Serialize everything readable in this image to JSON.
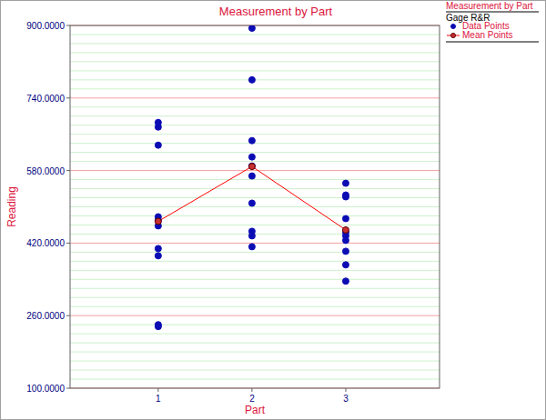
{
  "chart_data": {
    "type": "scatter",
    "title": "Measurement by Part",
    "x_label": "Part",
    "y_label": "Reading",
    "legend_title": "Measurement by Part",
    "legend_subtitle": "Gage R&R",
    "legend": "top-right",
    "grid": true,
    "xlim": [
      0.06,
      4.0
    ],
    "xticks": [
      1,
      2,
      3
    ],
    "ylim": [
      100,
      900
    ],
    "yticks": [
      {
        "value": 100,
        "label": "100.0000"
      },
      {
        "value": 260,
        "label": "260.0000"
      },
      {
        "value": 420,
        "label": "420.0000"
      },
      {
        "value": 580,
        "label": "580.0000"
      },
      {
        "value": 740,
        "label": "740.0000"
      },
      {
        "value": 900,
        "label": "900.0000"
      }
    ],
    "series": [
      {
        "name": "Data Points",
        "type": "scatter",
        "color": "#0c0cb4",
        "marker": "circle",
        "x": [
          1,
          1,
          1,
          1,
          1,
          1,
          1,
          1,
          1,
          1,
          2,
          2,
          2,
          2,
          2,
          2,
          2,
          2,
          2,
          2,
          3,
          3,
          3,
          3,
          3,
          3,
          3,
          3,
          3,
          3
        ],
        "values": [
          686,
          676,
          636,
          478,
          470,
          458,
          408,
          392,
          240,
          236,
          894,
          780,
          646,
          610,
          590,
          568,
          508,
          446,
          436,
          412,
          552,
          526,
          522,
          474,
          444,
          436,
          426,
          402,
          372,
          336
        ]
      },
      {
        "name": "Mean Points",
        "type": "line",
        "color": "#ff0000",
        "marker": "circle",
        "line_style": "solid",
        "x": [
          1,
          2,
          3
        ],
        "values": [
          468,
          589,
          449
        ]
      }
    ]
  }
}
